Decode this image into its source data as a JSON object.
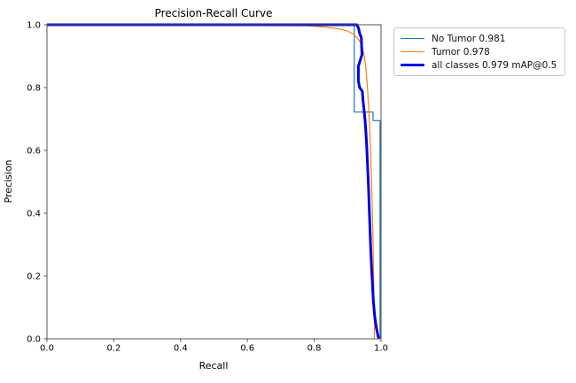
{
  "chart_data": {
    "type": "line",
    "title": "Precision-Recall Curve",
    "xlabel": "Recall",
    "ylabel": "Precision",
    "xlim": [
      0.0,
      1.0
    ],
    "ylim": [
      0.0,
      1.0
    ],
    "xticks": [
      0.0,
      0.2,
      0.4,
      0.6,
      0.8,
      1.0
    ],
    "yticks": [
      0.0,
      0.2,
      0.4,
      0.6,
      0.8,
      1.0
    ],
    "grid": false,
    "legend_position": "outside upper right",
    "spine_color": "#555555",
    "series": [
      {
        "name": "no-tumor",
        "label": "No Tumor 0.981",
        "ap": 0.981,
        "color": "#1f77b4",
        "linewidth": 1.2,
        "points": [
          [
            0.0,
            1.0
          ],
          [
            0.92,
            1.0
          ],
          [
            0.92,
            0.722
          ],
          [
            0.976,
            0.722
          ],
          [
            0.976,
            0.695
          ],
          [
            0.997,
            0.695
          ],
          [
            0.997,
            0.0
          ]
        ]
      },
      {
        "name": "tumor",
        "label": "Tumor 0.978",
        "ap": 0.978,
        "color": "#ff7f0e",
        "linewidth": 1.2,
        "points": [
          [
            0.0,
            1.0
          ],
          [
            0.78,
            0.997
          ],
          [
            0.83,
            0.993
          ],
          [
            0.87,
            0.988
          ],
          [
            0.9,
            0.98
          ],
          [
            0.92,
            0.968
          ],
          [
            0.935,
            0.95
          ],
          [
            0.944,
            0.928
          ],
          [
            0.95,
            0.9
          ],
          [
            0.954,
            0.865
          ],
          [
            0.958,
            0.82
          ],
          [
            0.961,
            0.77
          ],
          [
            0.963,
            0.735
          ],
          [
            0.965,
            0.695
          ],
          [
            0.967,
            0.645
          ],
          [
            0.969,
            0.585
          ],
          [
            0.971,
            0.52
          ],
          [
            0.973,
            0.445
          ],
          [
            0.975,
            0.36
          ],
          [
            0.977,
            0.265
          ],
          [
            0.978,
            0.185
          ],
          [
            0.979,
            0.1
          ],
          [
            0.98,
            0.04
          ],
          [
            0.98,
            0.0
          ]
        ]
      },
      {
        "name": "all-classes",
        "label": "all classes 0.979 mAP@0.5",
        "map_at_0_5": 0.979,
        "color": "#0000e6",
        "linewidth": 3,
        "points": [
          [
            0.0,
            1.0
          ],
          [
            0.928,
            1.0
          ],
          [
            0.933,
            0.988
          ],
          [
            0.936,
            0.972
          ],
          [
            0.941,
            0.958
          ],
          [
            0.942,
            0.93
          ],
          [
            0.943,
            0.905
          ],
          [
            0.938,
            0.888
          ],
          [
            0.932,
            0.868
          ],
          [
            0.932,
            0.82
          ],
          [
            0.936,
            0.8
          ],
          [
            0.944,
            0.788
          ],
          [
            0.946,
            0.76
          ],
          [
            0.949,
            0.73
          ],
          [
            0.952,
            0.698
          ],
          [
            0.955,
            0.655
          ],
          [
            0.957,
            0.615
          ],
          [
            0.959,
            0.57
          ],
          [
            0.961,
            0.52
          ],
          [
            0.963,
            0.465
          ],
          [
            0.965,
            0.405
          ],
          [
            0.967,
            0.345
          ],
          [
            0.969,
            0.29
          ],
          [
            0.971,
            0.238
          ],
          [
            0.974,
            0.18
          ],
          [
            0.977,
            0.122
          ],
          [
            0.981,
            0.072
          ],
          [
            0.986,
            0.035
          ],
          [
            0.99,
            0.014
          ],
          [
            0.993,
            0.0
          ]
        ]
      }
    ]
  }
}
